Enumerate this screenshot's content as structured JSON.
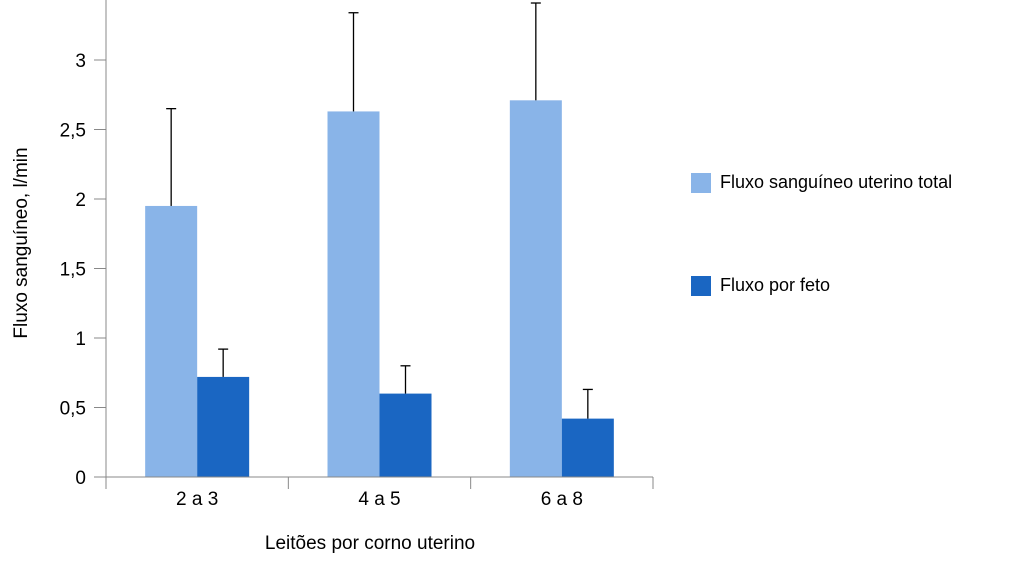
{
  "chart_data": {
    "type": "bar",
    "title": "",
    "xlabel": "Leitões por corno uterino",
    "ylabel": "Fluxo sanguíneo, l/min",
    "categories": [
      "2 a 3",
      "4 a 5",
      "6 a 8"
    ],
    "series": [
      {
        "name": "Fluxo sanguíneo uterino total",
        "color": "#89b4e8",
        "values": [
          1.95,
          2.63,
          2.71
        ],
        "error_upper": [
          2.65,
          3.34,
          3.41
        ]
      },
      {
        "name": "Fluxo por feto",
        "color": "#1a66c2",
        "values": [
          0.72,
          0.6,
          0.42
        ],
        "error_upper": [
          0.92,
          0.8,
          0.63
        ]
      }
    ],
    "yticks": [
      "0",
      "0,5",
      "1",
      "1,5",
      "2",
      "2,5",
      "3"
    ],
    "ytick_values": [
      0,
      0.5,
      1,
      1.5,
      2,
      2.5,
      3
    ],
    "ylim": [
      0,
      3.43
    ],
    "grid": false,
    "legend_position": "right"
  }
}
